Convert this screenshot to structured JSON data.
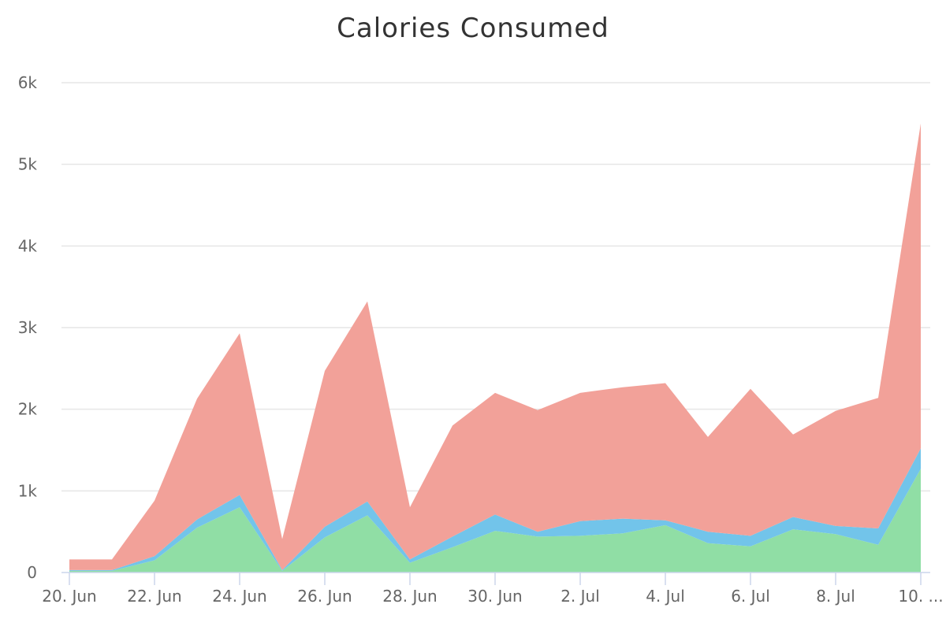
{
  "chart_data": {
    "type": "area",
    "stacked": true,
    "title": "Calories Consumed",
    "subtitle": "",
    "xlabel": "",
    "ylabel": "",
    "x": [
      "20. Jun",
      "21. Jun",
      "22. Jun",
      "23. Jun",
      "24. Jun",
      "25. Jun",
      "26. Jun",
      "27. Jun",
      "28. Jun",
      "29. Jun",
      "30. Jun",
      "1. Jul",
      "2. Jul",
      "3. Jul",
      "4. Jul",
      "5. Jul",
      "6. Jul",
      "7. Jul",
      "8. Jul",
      "9. Jul",
      "10. Jul"
    ],
    "x_tick_labels": [
      "20. Jun",
      "22. Jun",
      "24. Jun",
      "26. Jun",
      "28. Jun",
      "30. Jun",
      "2. Jul",
      "4. Jul",
      "6. Jul",
      "8. Jul",
      "10. ..."
    ],
    "ylim": [
      0,
      6000
    ],
    "y_tick_labels": [
      "0",
      "1k",
      "2k",
      "3k",
      "4k",
      "5k",
      "6k"
    ],
    "grid": true,
    "legend": "none",
    "series": [
      {
        "color": "#90dea5",
        "values": [
          20,
          20,
          150,
          550,
          800,
          20,
          430,
          700,
          120,
          310,
          510,
          440,
          450,
          480,
          580,
          360,
          320,
          530,
          470,
          340,
          1270
        ]
      },
      {
        "color": "#72c4ea",
        "values": [
          10,
          10,
          50,
          100,
          150,
          10,
          130,
          170,
          40,
          130,
          200,
          60,
          180,
          180,
          60,
          140,
          130,
          150,
          100,
          200,
          250
        ]
      },
      {
        "color": "#f2a199",
        "values": [
          130,
          130,
          680,
          1480,
          1980,
          380,
          1910,
          2450,
          640,
          1360,
          1490,
          1490,
          1570,
          1610,
          1680,
          1160,
          1800,
          1010,
          1410,
          1600,
          3980
        ]
      }
    ]
  }
}
